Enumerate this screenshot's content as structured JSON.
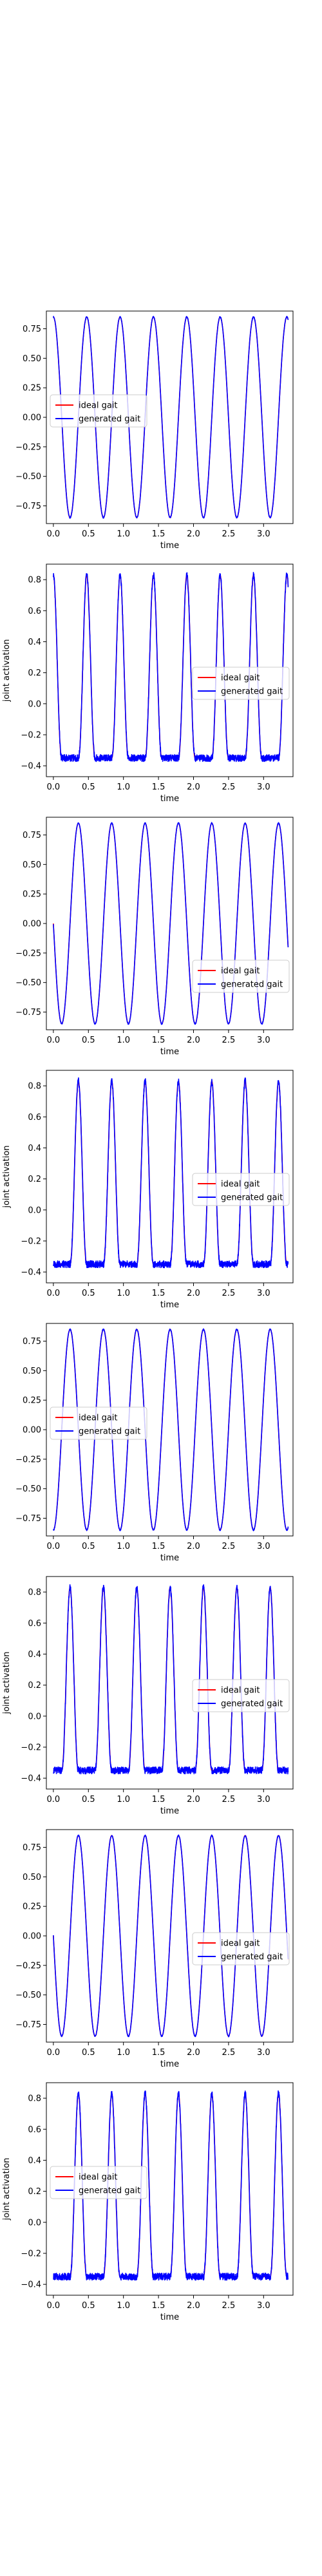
{
  "figure": {
    "background": "#ffffff"
  },
  "chart_data": [
    {
      "type": "line",
      "xlabel": "time",
      "ylabel": "",
      "xlim": [
        -0.1,
        3.42
      ],
      "ylim": [
        -0.9,
        0.9
      ],
      "xticks": [
        0.0,
        0.5,
        1.0,
        1.5,
        2.0,
        2.5,
        3.0
      ],
      "xtick_labels": [
        "0.0",
        "0.5",
        "1.0",
        "1.5",
        "2.0",
        "2.5",
        "3.0"
      ],
      "yticks": [
        0.75,
        0.5,
        0.25,
        0.0,
        -0.25,
        -0.5,
        -0.75
      ],
      "ytick_labels": [
        "0.75",
        "0.50",
        "0.25",
        "0.00",
        "−0.25",
        "−0.50",
        "−0.75"
      ],
      "grid": false,
      "legend": {
        "position": "center-left"
      },
      "x_range": [
        0.0,
        3.35
      ],
      "series": [
        {
          "name": "ideal gait",
          "color": "#ff0000",
          "shape": "sine",
          "amplitude": 0.85,
          "period": 0.476,
          "phase": 0.0,
          "min_y": -0.85,
          "max_y": 0.85
        },
        {
          "name": "generated gait",
          "color": "#0000ff",
          "shape": "sine",
          "amplitude": 0.85,
          "period": 0.476,
          "phase": 0.0,
          "min_y": -0.85,
          "max_y": 0.85
        }
      ]
    },
    {
      "type": "line",
      "xlabel": "time",
      "ylabel": "joint activation",
      "xlim": [
        -0.1,
        3.42
      ],
      "ylim": [
        -0.47,
        0.9
      ],
      "xticks": [
        0.0,
        0.5,
        1.0,
        1.5,
        2.0,
        2.5,
        3.0
      ],
      "xtick_labels": [
        "0.0",
        "0.5",
        "1.0",
        "1.5",
        "2.0",
        "2.5",
        "3.0"
      ],
      "yticks": [
        0.8,
        0.6,
        0.4,
        0.2,
        0.0,
        -0.2,
        -0.4
      ],
      "ytick_labels": [
        "0.8",
        "0.6",
        "0.4",
        "0.2",
        "0.0",
        "−0.2",
        "−0.4"
      ],
      "grid": false,
      "legend": {
        "position": "center-right"
      },
      "x_range": [
        0.0,
        3.35
      ],
      "series": [
        {
          "name": "ideal gait",
          "color": "#ff0000",
          "shape": "pulse",
          "amplitude": 0.85,
          "period": 0.476,
          "phase": 0.0,
          "min_y": -0.35,
          "max_y": 0.83
        },
        {
          "name": "generated gait",
          "color": "#0000ff",
          "shape": "pulse",
          "amplitude": 0.85,
          "period": 0.476,
          "phase": 0.0,
          "min_y": -0.35,
          "max_y": 0.83
        }
      ]
    },
    {
      "type": "line",
      "xlabel": "time",
      "ylabel": "",
      "xlim": [
        -0.1,
        3.42
      ],
      "ylim": [
        -0.9,
        0.9
      ],
      "xticks": [
        0.0,
        0.5,
        1.0,
        1.5,
        2.0,
        2.5,
        3.0
      ],
      "xtick_labels": [
        "0.0",
        "0.5",
        "1.0",
        "1.5",
        "2.0",
        "2.5",
        "3.0"
      ],
      "yticks": [
        0.75,
        0.5,
        0.25,
        0.0,
        -0.25,
        -0.5,
        -0.75
      ],
      "ytick_labels": [
        "0.75",
        "0.50",
        "0.25",
        "0.00",
        "−0.25",
        "−0.50",
        "−0.75"
      ],
      "grid": false,
      "legend": {
        "position": "lower-right"
      },
      "x_range": [
        0.0,
        3.35
      ],
      "series": [
        {
          "name": "ideal gait",
          "color": "#ff0000",
          "shape": "sine",
          "amplitude": 0.85,
          "period": 0.476,
          "phase": -0.119,
          "min_y": -0.85,
          "max_y": 0.85
        },
        {
          "name": "generated gait",
          "color": "#0000ff",
          "shape": "sine",
          "amplitude": 0.85,
          "period": 0.476,
          "phase": -0.119,
          "min_y": -0.85,
          "max_y": 0.85
        }
      ]
    },
    {
      "type": "line",
      "xlabel": "time",
      "ylabel": "joint activation",
      "xlim": [
        -0.1,
        3.42
      ],
      "ylim": [
        -0.47,
        0.9
      ],
      "xticks": [
        0.0,
        0.5,
        1.0,
        1.5,
        2.0,
        2.5,
        3.0
      ],
      "xtick_labels": [
        "0.0",
        "0.5",
        "1.0",
        "1.5",
        "2.0",
        "2.5",
        "3.0"
      ],
      "yticks": [
        0.8,
        0.6,
        0.4,
        0.2,
        0.0,
        -0.2,
        -0.4
      ],
      "ytick_labels": [
        "0.8",
        "0.6",
        "0.4",
        "0.2",
        "0.0",
        "−0.2",
        "−0.4"
      ],
      "grid": false,
      "legend": {
        "position": "center-right"
      },
      "x_range": [
        0.0,
        3.35
      ],
      "series": [
        {
          "name": "ideal gait",
          "color": "#ff0000",
          "shape": "pulse",
          "amplitude": 0.85,
          "period": 0.476,
          "phase": -0.119,
          "min_y": -0.35,
          "max_y": 0.83
        },
        {
          "name": "generated gait",
          "color": "#0000ff",
          "shape": "pulse",
          "amplitude": 0.85,
          "period": 0.476,
          "phase": -0.119,
          "min_y": -0.35,
          "max_y": 0.83
        }
      ]
    },
    {
      "type": "line",
      "xlabel": "time",
      "ylabel": "",
      "xlim": [
        -0.1,
        3.42
      ],
      "ylim": [
        -0.9,
        0.9
      ],
      "xticks": [
        0.0,
        0.5,
        1.0,
        1.5,
        2.0,
        2.5,
        3.0
      ],
      "xtick_labels": [
        "0.0",
        "0.5",
        "1.0",
        "1.5",
        "2.0",
        "2.5",
        "3.0"
      ],
      "yticks": [
        0.75,
        0.5,
        0.25,
        0.0,
        -0.25,
        -0.5,
        -0.75
      ],
      "ytick_labels": [
        "0.75",
        "0.50",
        "0.25",
        "0.00",
        "−0.25",
        "−0.50",
        "−0.75"
      ],
      "grid": false,
      "legend": {
        "position": "center-left"
      },
      "x_range": [
        0.0,
        3.35
      ],
      "series": [
        {
          "name": "ideal gait",
          "color": "#ff0000",
          "shape": "sine",
          "amplitude": 0.85,
          "period": 0.476,
          "phase": 0.238,
          "min_y": -0.85,
          "max_y": 0.85
        },
        {
          "name": "generated gait",
          "color": "#0000ff",
          "shape": "sine",
          "amplitude": 0.85,
          "period": 0.476,
          "phase": 0.238,
          "min_y": -0.85,
          "max_y": 0.85
        }
      ]
    },
    {
      "type": "line",
      "xlabel": "time",
      "ylabel": "joint activation",
      "xlim": [
        -0.1,
        3.42
      ],
      "ylim": [
        -0.47,
        0.9
      ],
      "xticks": [
        0.0,
        0.5,
        1.0,
        1.5,
        2.0,
        2.5,
        3.0
      ],
      "xtick_labels": [
        "0.0",
        "0.5",
        "1.0",
        "1.5",
        "2.0",
        "2.5",
        "3.0"
      ],
      "yticks": [
        0.8,
        0.6,
        0.4,
        0.2,
        0.0,
        -0.2,
        -0.4
      ],
      "ytick_labels": [
        "0.8",
        "0.6",
        "0.4",
        "0.2",
        "0.0",
        "−0.2",
        "−0.4"
      ],
      "grid": false,
      "legend": {
        "position": "center-right"
      },
      "x_range": [
        0.0,
        3.35
      ],
      "series": [
        {
          "name": "ideal gait",
          "color": "#ff0000",
          "shape": "pulse",
          "amplitude": 0.85,
          "period": 0.476,
          "phase": 0.238,
          "min_y": -0.35,
          "max_y": 0.83
        },
        {
          "name": "generated gait",
          "color": "#0000ff",
          "shape": "pulse",
          "amplitude": 0.85,
          "period": 0.476,
          "phase": 0.238,
          "min_y": -0.35,
          "max_y": 0.83
        }
      ]
    },
    {
      "type": "line",
      "xlabel": "time",
      "ylabel": "",
      "xlim": [
        -0.1,
        3.42
      ],
      "ylim": [
        -0.9,
        0.9
      ],
      "xticks": [
        0.0,
        0.5,
        1.0,
        1.5,
        2.0,
        2.5,
        3.0
      ],
      "xtick_labels": [
        "0.0",
        "0.5",
        "1.0",
        "1.5",
        "2.0",
        "2.5",
        "3.0"
      ],
      "yticks": [
        0.75,
        0.5,
        0.25,
        0.0,
        -0.25,
        -0.5,
        -0.75
      ],
      "ytick_labels": [
        "0.75",
        "0.50",
        "0.25",
        "0.00",
        "−0.25",
        "−0.50",
        "−0.75"
      ],
      "grid": false,
      "legend": {
        "position": "center-right"
      },
      "x_range": [
        0.0,
        3.35
      ],
      "series": [
        {
          "name": "ideal gait",
          "color": "#ff0000",
          "shape": "sine",
          "amplitude": 0.85,
          "period": 0.476,
          "phase": -0.119,
          "min_y": -0.85,
          "max_y": 0.85
        },
        {
          "name": "generated gait",
          "color": "#0000ff",
          "shape": "sine",
          "amplitude": 0.85,
          "period": 0.476,
          "phase": -0.119,
          "min_y": -0.85,
          "max_y": 0.85
        }
      ]
    },
    {
      "type": "line",
      "xlabel": "time",
      "ylabel": "joint activation",
      "xlim": [
        -0.1,
        3.42
      ],
      "ylim": [
        -0.47,
        0.9
      ],
      "xticks": [
        0.0,
        0.5,
        1.0,
        1.5,
        2.0,
        2.5,
        3.0
      ],
      "xtick_labels": [
        "0.0",
        "0.5",
        "1.0",
        "1.5",
        "2.0",
        "2.5",
        "3.0"
      ],
      "yticks": [
        0.8,
        0.6,
        0.4,
        0.2,
        0.0,
        -0.2,
        -0.4
      ],
      "ytick_labels": [
        "0.8",
        "0.6",
        "0.4",
        "0.2",
        "0.0",
        "−0.2",
        "−0.4"
      ],
      "grid": false,
      "legend": {
        "position": "center-left"
      },
      "x_range": [
        0.0,
        3.35
      ],
      "series": [
        {
          "name": "ideal gait",
          "color": "#ff0000",
          "shape": "pulse",
          "amplitude": 0.85,
          "period": 0.476,
          "phase": -0.119,
          "min_y": -0.35,
          "max_y": 0.83
        },
        {
          "name": "generated gait",
          "color": "#0000ff",
          "shape": "pulse",
          "amplitude": 0.85,
          "period": 0.476,
          "phase": -0.119,
          "min_y": -0.35,
          "max_y": 0.83
        }
      ]
    }
  ]
}
